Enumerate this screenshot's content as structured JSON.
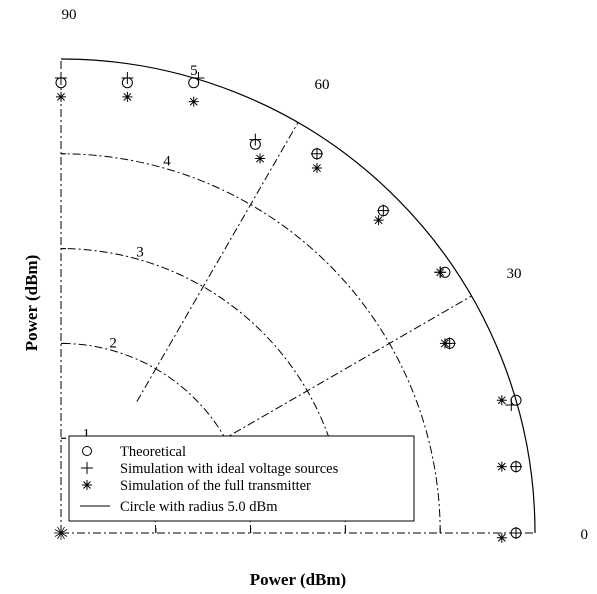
{
  "chart_data": {
    "type": "scatter",
    "coordinate_system": "polar",
    "xlabel": "Power (dBm)",
    "ylabel": "Power (dBm)",
    "radial_range": [
      0,
      5
    ],
    "angle_range_deg": [
      0,
      90
    ],
    "radial_ticks": [
      "1",
      "2",
      "3",
      "4",
      "5"
    ],
    "angle_ticks": [
      "0",
      "30",
      "60",
      "90"
    ],
    "grid": true,
    "legend_position": "bottom-left",
    "series": [
      {
        "name": "Theoretical",
        "marker": "circle",
        "points": [
          {
            "x": 4.8,
            "y": 0.0
          },
          {
            "x": 4.8,
            "y": 0.7
          },
          {
            "x": 4.8,
            "y": 1.4
          },
          {
            "x": 4.1,
            "y": 2.0
          },
          {
            "x": 4.05,
            "y": 2.75
          },
          {
            "x": 3.4,
            "y": 3.4
          },
          {
            "x": 2.7,
            "y": 4.0
          },
          {
            "x": 2.05,
            "y": 4.1
          },
          {
            "x": 1.4,
            "y": 4.75
          },
          {
            "x": 0.7,
            "y": 4.75
          },
          {
            "x": 0.0,
            "y": 4.75
          }
        ]
      },
      {
        "name": "Simulation with ideal voltage sources",
        "marker": "plus",
        "points": [
          {
            "x": 4.8,
            "y": 0.0
          },
          {
            "x": 4.8,
            "y": 0.7
          },
          {
            "x": 4.75,
            "y": 1.35
          },
          {
            "x": 4.1,
            "y": 2.0
          },
          {
            "x": 4.0,
            "y": 2.75
          },
          {
            "x": 3.4,
            "y": 3.4
          },
          {
            "x": 2.7,
            "y": 4.0
          },
          {
            "x": 2.05,
            "y": 4.15
          },
          {
            "x": 1.45,
            "y": 4.8
          },
          {
            "x": 0.7,
            "y": 4.8
          },
          {
            "x": 0.0,
            "y": 4.8
          }
        ]
      },
      {
        "name": "Simulation of the full transmitter",
        "marker": "asterisk",
        "points": [
          {
            "x": 4.65,
            "y": -0.05
          },
          {
            "x": 4.65,
            "y": 0.7
          },
          {
            "x": 4.65,
            "y": 1.4
          },
          {
            "x": 4.05,
            "y": 2.0
          },
          {
            "x": 4.0,
            "y": 2.75
          },
          {
            "x": 3.35,
            "y": 3.3
          },
          {
            "x": 2.7,
            "y": 3.85
          },
          {
            "x": 2.1,
            "y": 3.95
          },
          {
            "x": 1.4,
            "y": 4.55
          },
          {
            "x": 0.7,
            "y": 4.6
          },
          {
            "x": 0.0,
            "y": 4.6
          }
        ]
      },
      {
        "name": "Circle with radius 5.0 dBm",
        "marker": "line",
        "radius": 5.0
      }
    ]
  }
}
